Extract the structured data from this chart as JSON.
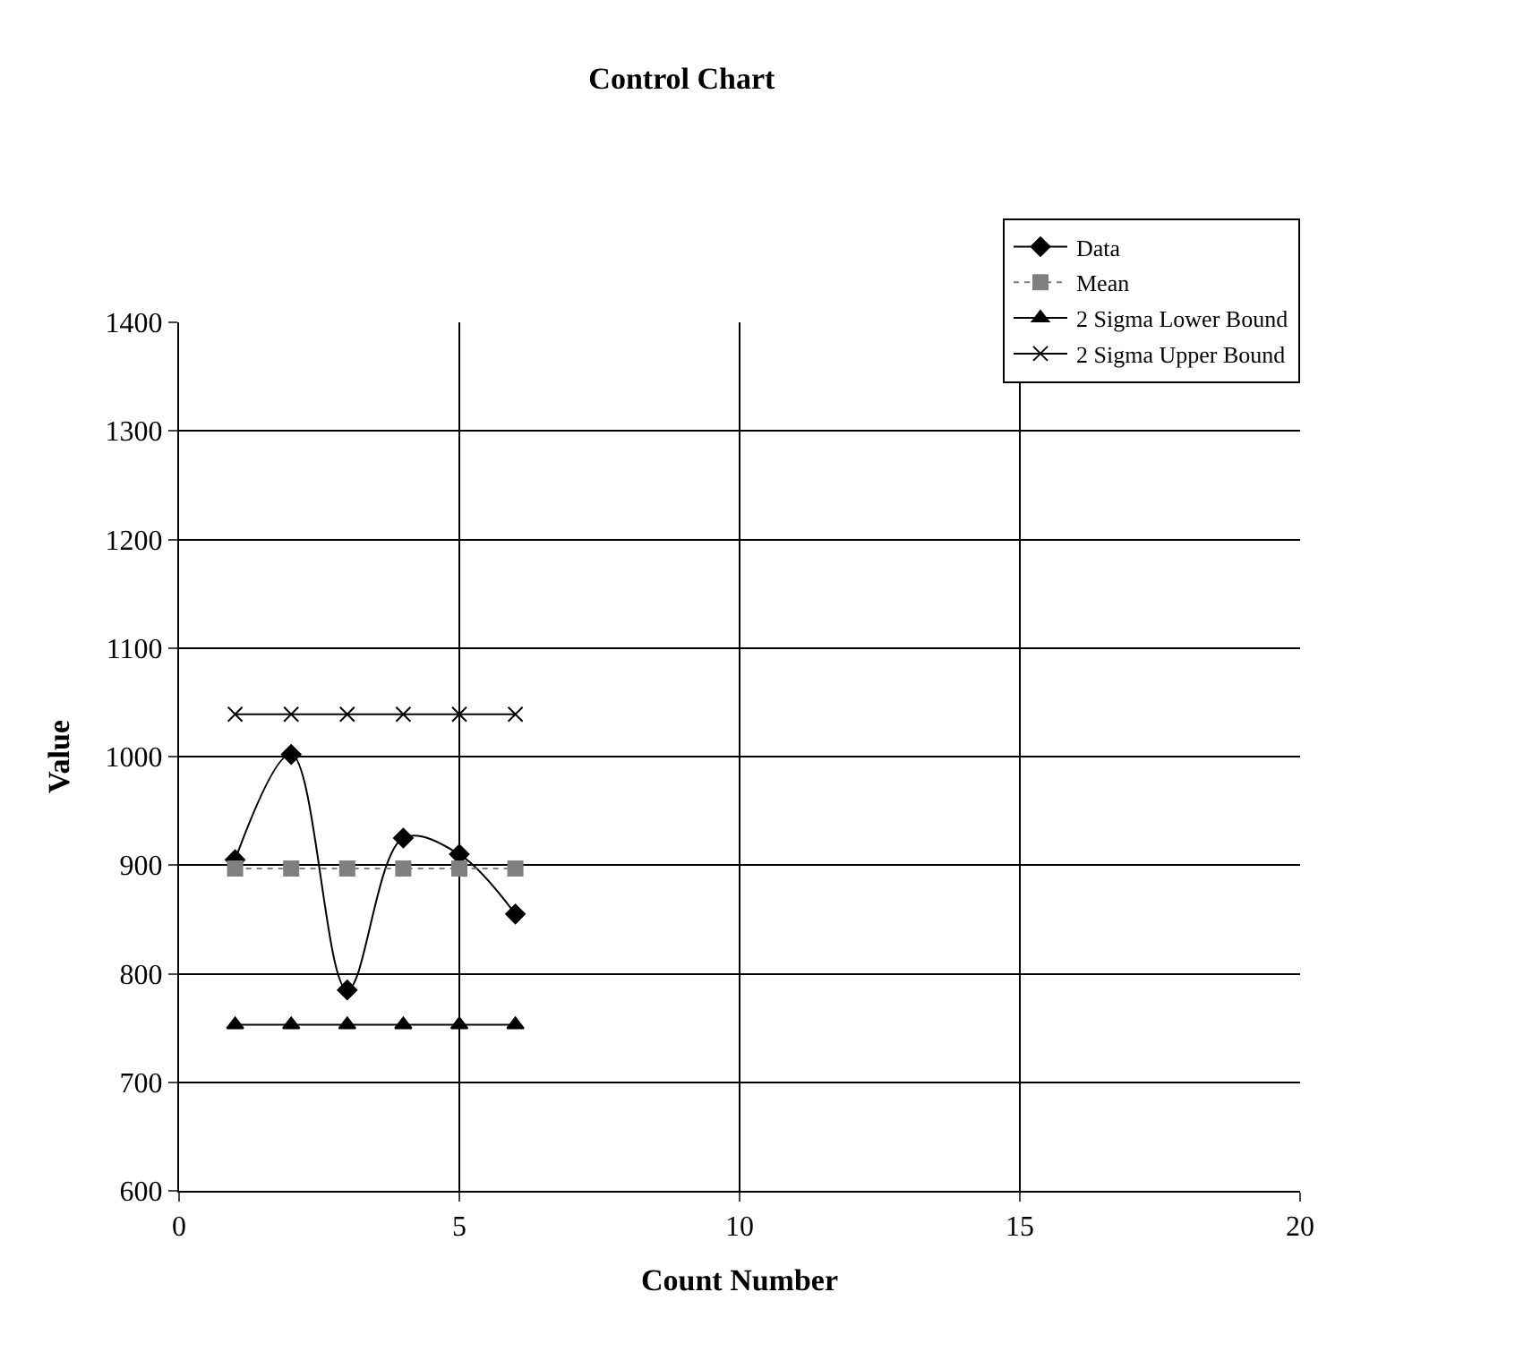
{
  "chart_data": {
    "type": "line",
    "title": "Control Chart",
    "xlabel": "Count Number",
    "ylabel": "Value",
    "xlim": [
      0,
      20
    ],
    "xticks": [
      0,
      5,
      10,
      15,
      20
    ],
    "ylim": [
      600,
      1400
    ],
    "yticks": [
      600,
      700,
      800,
      900,
      1000,
      1100,
      1200,
      1300,
      1400
    ],
    "grid": true,
    "legend": "top right",
    "series": [
      {
        "name": "Data",
        "color": "#000000",
        "marker": "diamond",
        "line_style": "solid",
        "x": [
          1,
          2,
          3,
          4,
          5,
          6
        ],
        "values": [
          905,
          1002,
          785,
          925,
          910,
          855
        ]
      },
      {
        "name": "Mean",
        "color": "#808080",
        "marker": "square",
        "line_style": "dotted",
        "x": [
          1,
          2,
          3,
          4,
          5,
          6
        ],
        "values": [
          897,
          897,
          897,
          897,
          897,
          897
        ]
      },
      {
        "name": "2 Sigma Lower Bound",
        "color": "#000000",
        "marker": "triangle",
        "line_style": "solid",
        "x": [
          1,
          2,
          3,
          4,
          5,
          6
        ],
        "values": [
          753,
          753,
          753,
          753,
          753,
          753
        ]
      },
      {
        "name": "2 Sigma Upper Bound",
        "color": "#000000",
        "marker": "cross",
        "line_style": "solid",
        "x": [
          1,
          2,
          3,
          4,
          5,
          6
        ],
        "values": [
          1039,
          1039,
          1039,
          1039,
          1039,
          1039
        ]
      }
    ]
  }
}
